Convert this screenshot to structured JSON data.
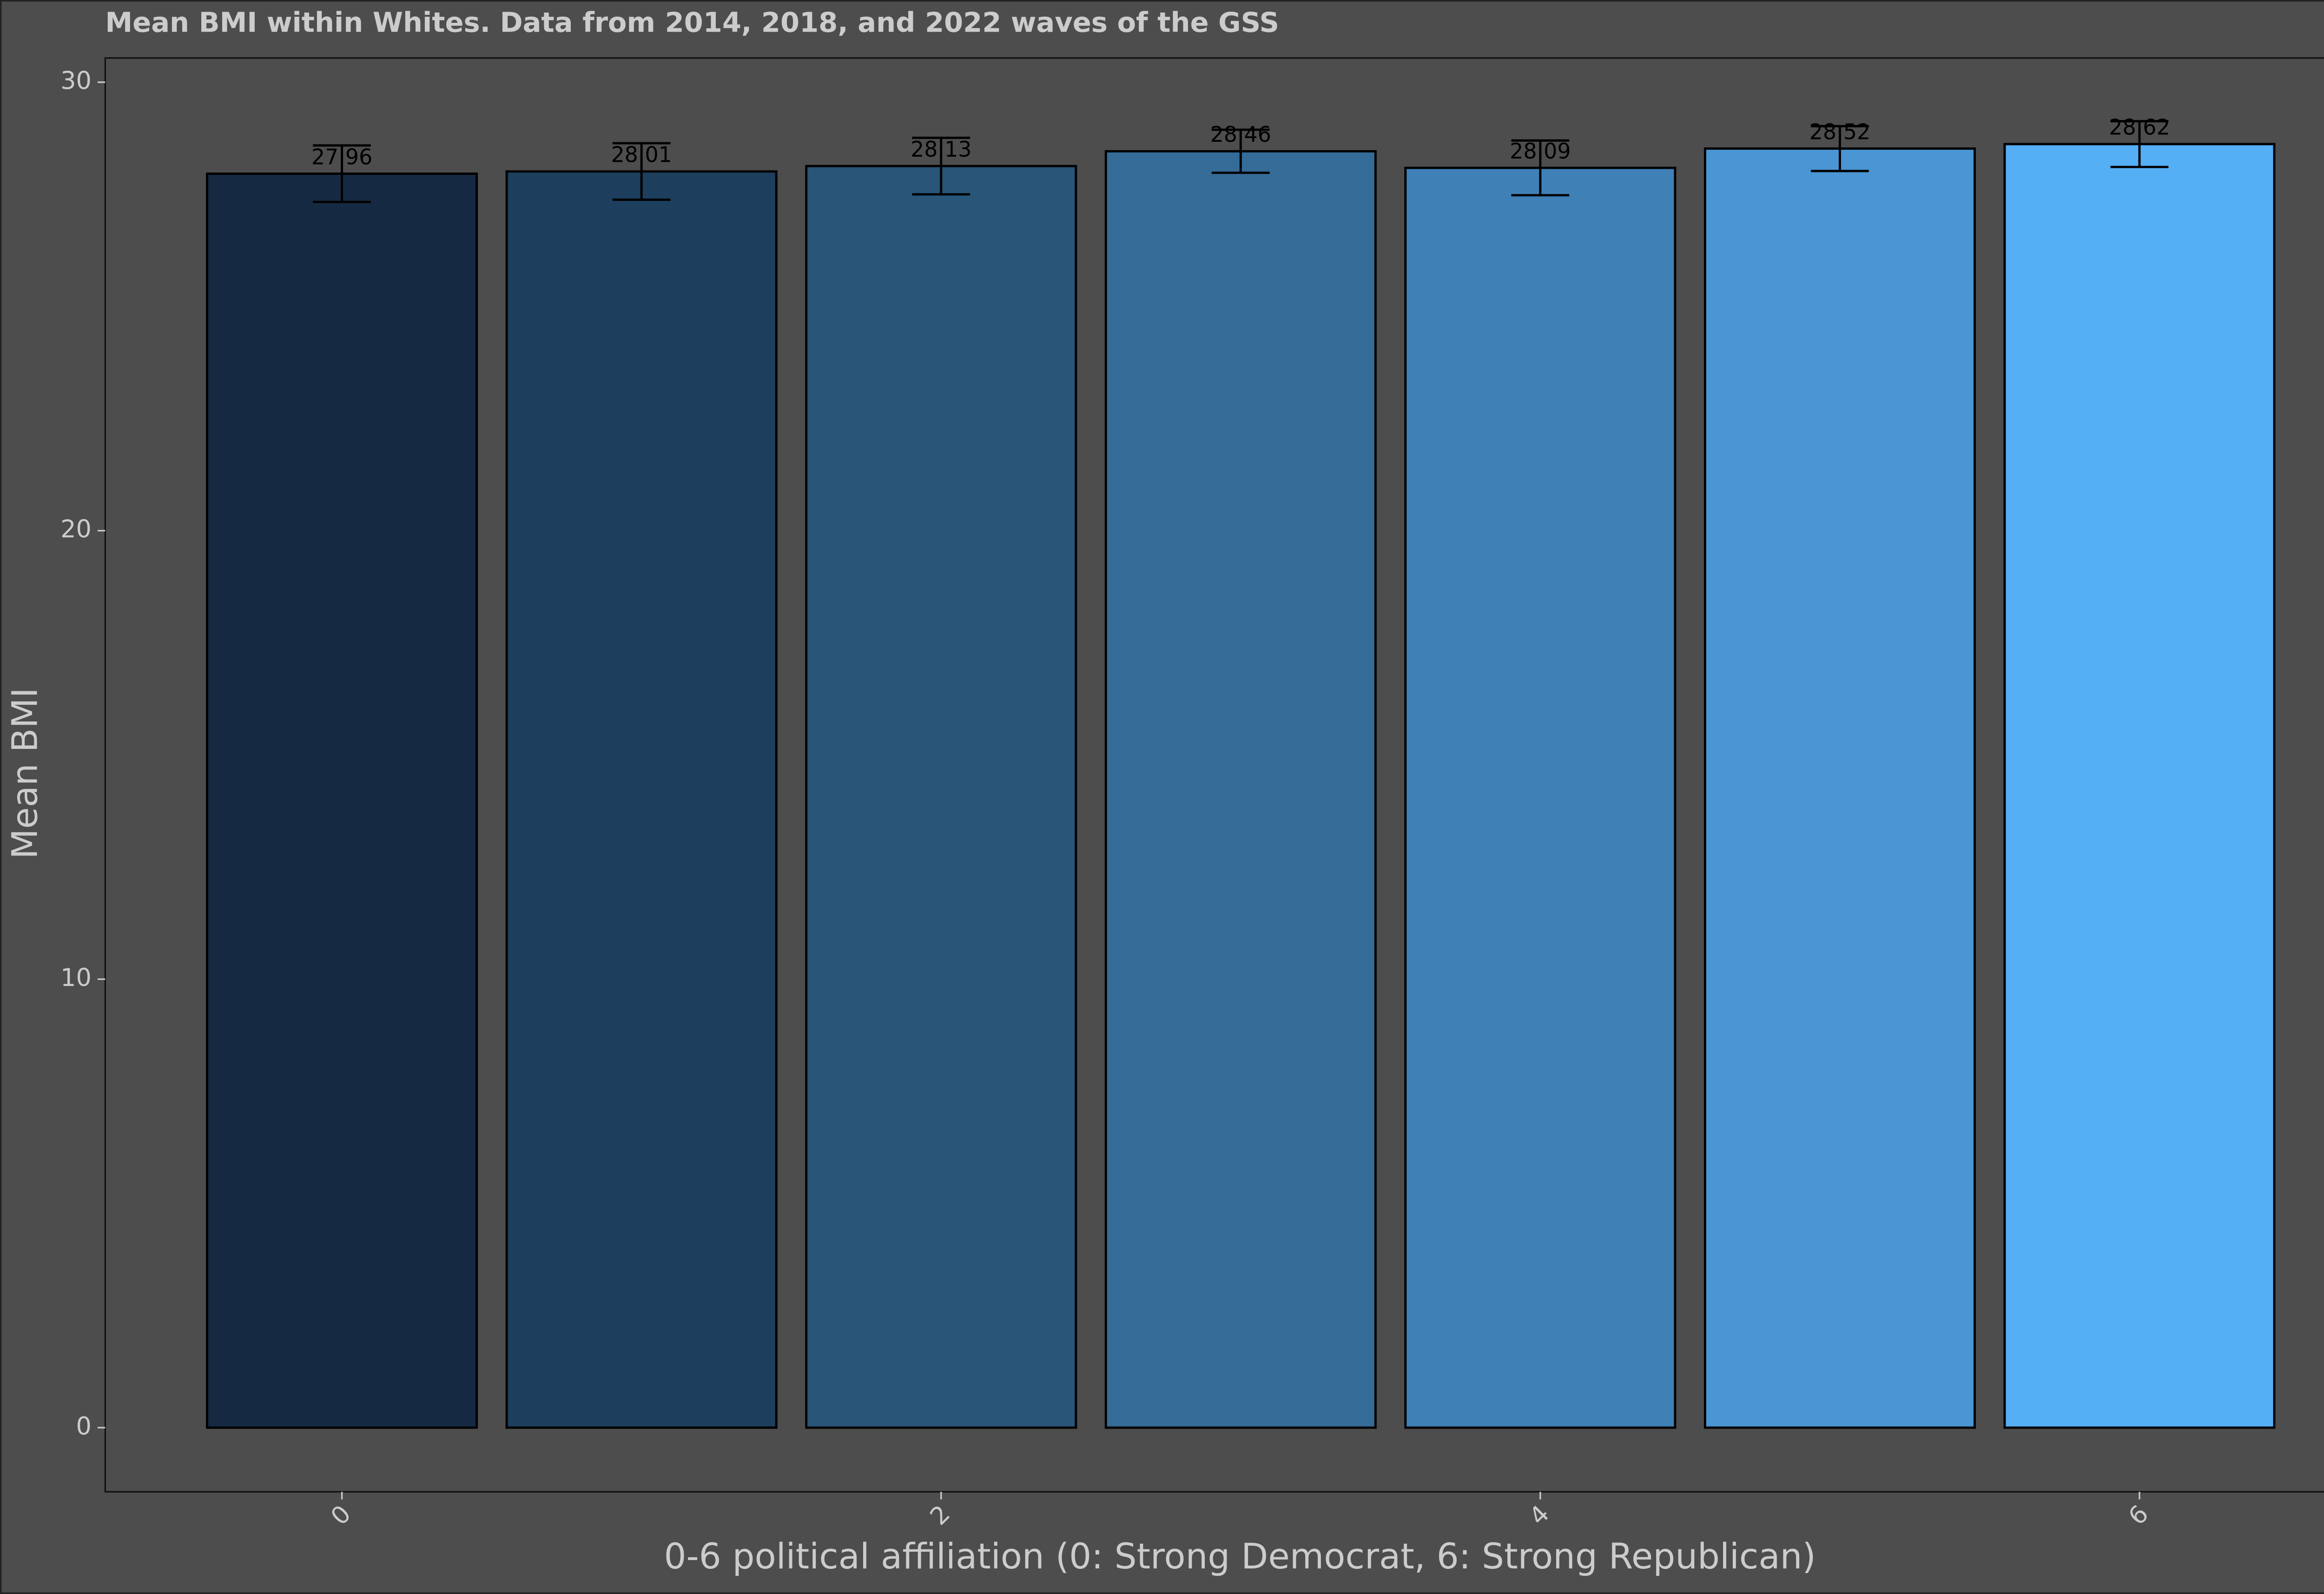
{
  "chart_data": {
    "type": "bar",
    "title": "Mean BMI within Whites. Data from 2014, 2018, and 2022 waves of the GSS",
    "x_label": "0-6 political affiliation (0: Strong Democrat, 6: Strong Republican)",
    "y_label": "Mean BMI",
    "x": [
      0,
      1,
      2,
      3,
      4,
      5,
      6
    ],
    "values": [
      27.96,
      28.01,
      28.13,
      28.46,
      28.09,
      28.52,
      28.62
    ],
    "errors": [
      0.63,
      0.63,
      0.63,
      0.48,
      0.61,
      0.5,
      0.51
    ],
    "colors": [
      "#152a42",
      "#1d3e5d",
      "#285578",
      "#356b97",
      "#3f80b6",
      "#4a95d4",
      "#55aff5"
    ],
    "xlim": [
      -0.79,
      6.79
    ],
    "xticks": [
      0,
      2,
      4,
      6
    ],
    "ylim": [
      -1.43,
      30.54
    ],
    "yticks": [
      0,
      10,
      20,
      30
    ]
  }
}
